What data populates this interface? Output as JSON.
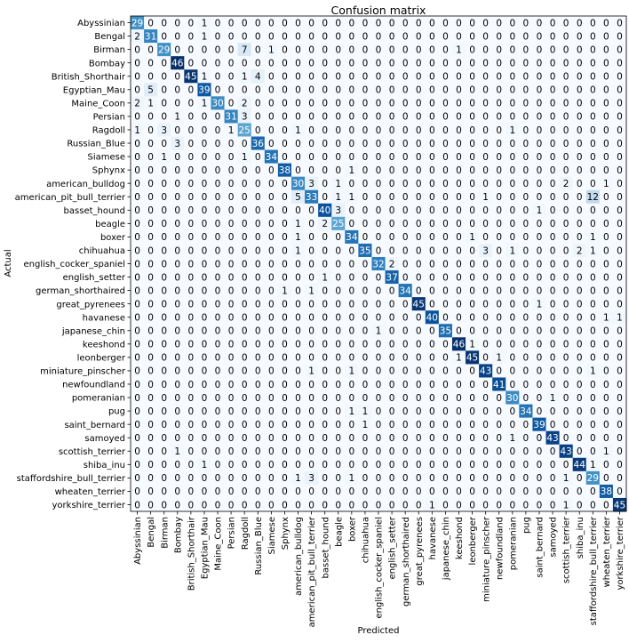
{
  "chart_data": {
    "type": "heatmap",
    "title": "Confusion matrix",
    "xlabel": "Predicted",
    "ylabel": "Actual",
    "categories": [
      "Abyssinian",
      "Bengal",
      "Birman",
      "Bombay",
      "British_Shorthair",
      "Egyptian_Mau",
      "Maine_Coon",
      "Persian",
      "Ragdoll",
      "Russian_Blue",
      "Siamese",
      "Sphynx",
      "american_bulldog",
      "american_pit_bull_terrier",
      "basset_hound",
      "beagle",
      "boxer",
      "chihuahua",
      "english_cocker_spaniel",
      "english_setter",
      "german_shorthaired",
      "great_pyrenees",
      "havanese",
      "japanese_chin",
      "keeshond",
      "leonberger",
      "miniature_pinscher",
      "newfoundland",
      "pomeranian",
      "pug",
      "saint_bernard",
      "samoyed",
      "scottish_terrier",
      "shiba_inu",
      "staffordshire_bull_terrier",
      "wheaten_terrier",
      "yorkshire_terrier"
    ],
    "colormap": "Blues",
    "vmin": 0,
    "vmax": 46,
    "matrix": [
      [
        29,
        0,
        0,
        0,
        0,
        1,
        0,
        0,
        0,
        0,
        0,
        0,
        0,
        0,
        0,
        0,
        0,
        0,
        0,
        0,
        0,
        0,
        0,
        0,
        0,
        0,
        0,
        0,
        0,
        0,
        0,
        0,
        0,
        0,
        0,
        0,
        0
      ],
      [
        2,
        31,
        0,
        0,
        0,
        1,
        0,
        0,
        0,
        0,
        0,
        0,
        0,
        0,
        0,
        0,
        0,
        0,
        0,
        0,
        0,
        0,
        0,
        0,
        0,
        0,
        0,
        0,
        0,
        0,
        0,
        0,
        0,
        0,
        0,
        0,
        0
      ],
      [
        0,
        0,
        29,
        0,
        0,
        0,
        0,
        0,
        7,
        0,
        1,
        0,
        0,
        0,
        0,
        0,
        0,
        0,
        0,
        0,
        0,
        0,
        0,
        0,
        1,
        0,
        0,
        0,
        0,
        0,
        0,
        0,
        0,
        0,
        0,
        0,
        0
      ],
      [
        0,
        0,
        0,
        46,
        0,
        0,
        0,
        0,
        0,
        0,
        0,
        0,
        0,
        0,
        0,
        0,
        0,
        0,
        0,
        0,
        0,
        0,
        0,
        0,
        0,
        0,
        0,
        0,
        0,
        0,
        0,
        0,
        0,
        0,
        0,
        0,
        0
      ],
      [
        0,
        0,
        0,
        0,
        45,
        1,
        0,
        0,
        1,
        4,
        0,
        0,
        0,
        0,
        0,
        0,
        0,
        0,
        0,
        0,
        0,
        0,
        0,
        0,
        0,
        0,
        0,
        0,
        0,
        0,
        0,
        0,
        0,
        0,
        0,
        0,
        0
      ],
      [
        0,
        5,
        0,
        0,
        0,
        39,
        0,
        0,
        0,
        0,
        0,
        0,
        0,
        0,
        0,
        0,
        0,
        0,
        0,
        0,
        0,
        0,
        0,
        0,
        0,
        0,
        0,
        0,
        0,
        0,
        0,
        0,
        0,
        0,
        0,
        0,
        0
      ],
      [
        2,
        1,
        0,
        0,
        0,
        1,
        30,
        0,
        2,
        0,
        0,
        0,
        0,
        0,
        0,
        0,
        0,
        0,
        0,
        0,
        0,
        0,
        0,
        0,
        0,
        0,
        0,
        0,
        0,
        0,
        0,
        0,
        0,
        0,
        0,
        0,
        0
      ],
      [
        0,
        0,
        0,
        1,
        0,
        0,
        0,
        31,
        3,
        0,
        0,
        0,
        0,
        0,
        0,
        0,
        0,
        0,
        0,
        0,
        0,
        0,
        0,
        0,
        0,
        0,
        0,
        0,
        0,
        0,
        0,
        0,
        0,
        0,
        0,
        0,
        0
      ],
      [
        1,
        0,
        3,
        0,
        0,
        0,
        0,
        1,
        25,
        0,
        0,
        0,
        1,
        0,
        0,
        0,
        0,
        0,
        0,
        0,
        0,
        0,
        0,
        0,
        0,
        0,
        0,
        0,
        1,
        0,
        0,
        0,
        0,
        0,
        0,
        0,
        0
      ],
      [
        0,
        0,
        0,
        3,
        0,
        0,
        0,
        0,
        0,
        36,
        0,
        0,
        0,
        0,
        0,
        0,
        0,
        0,
        0,
        0,
        0,
        0,
        0,
        0,
        0,
        0,
        0,
        0,
        0,
        0,
        0,
        0,
        0,
        0,
        0,
        0,
        0
      ],
      [
        0,
        0,
        1,
        0,
        0,
        0,
        0,
        0,
        1,
        0,
        34,
        0,
        0,
        0,
        0,
        0,
        0,
        0,
        0,
        0,
        0,
        0,
        0,
        0,
        0,
        0,
        0,
        0,
        0,
        0,
        0,
        0,
        0,
        0,
        0,
        0,
        0
      ],
      [
        0,
        0,
        0,
        0,
        0,
        0,
        0,
        0,
        0,
        0,
        0,
        38,
        0,
        0,
        0,
        0,
        1,
        0,
        0,
        0,
        0,
        0,
        0,
        0,
        0,
        0,
        0,
        0,
        0,
        0,
        0,
        0,
        0,
        0,
        0,
        0,
        0
      ],
      [
        0,
        0,
        0,
        0,
        0,
        0,
        0,
        0,
        0,
        0,
        0,
        0,
        30,
        3,
        0,
        1,
        0,
        0,
        0,
        0,
        0,
        0,
        0,
        0,
        0,
        0,
        0,
        0,
        0,
        0,
        0,
        0,
        2,
        0,
        0,
        1,
        0
      ],
      [
        0,
        0,
        0,
        0,
        0,
        0,
        0,
        0,
        0,
        0,
        0,
        0,
        5,
        33,
        0,
        1,
        1,
        0,
        0,
        0,
        0,
        0,
        0,
        0,
        0,
        0,
        1,
        0,
        0,
        0,
        0,
        0,
        0,
        0,
        12,
        0,
        0
      ],
      [
        0,
        0,
        0,
        0,
        0,
        0,
        0,
        0,
        0,
        0,
        0,
        0,
        0,
        0,
        40,
        3,
        0,
        0,
        0,
        0,
        0,
        0,
        0,
        0,
        0,
        0,
        0,
        0,
        0,
        0,
        1,
        0,
        0,
        0,
        0,
        0,
        0
      ],
      [
        0,
        0,
        0,
        0,
        0,
        0,
        0,
        0,
        0,
        0,
        0,
        0,
        1,
        0,
        2,
        25,
        0,
        0,
        0,
        0,
        0,
        0,
        0,
        0,
        0,
        0,
        0,
        0,
        0,
        0,
        0,
        0,
        0,
        0,
        0,
        0,
        0
      ],
      [
        0,
        0,
        0,
        0,
        0,
        0,
        0,
        0,
        0,
        0,
        0,
        0,
        1,
        0,
        0,
        0,
        34,
        0,
        0,
        0,
        0,
        0,
        0,
        0,
        0,
        1,
        0,
        0,
        0,
        0,
        0,
        0,
        0,
        0,
        1,
        0,
        0
      ],
      [
        0,
        0,
        0,
        0,
        0,
        0,
        0,
        0,
        0,
        0,
        0,
        0,
        1,
        0,
        0,
        0,
        0,
        35,
        0,
        0,
        0,
        0,
        0,
        0,
        0,
        0,
        3,
        0,
        1,
        0,
        0,
        0,
        0,
        2,
        1,
        0,
        0
      ],
      [
        0,
        0,
        0,
        0,
        0,
        0,
        0,
        0,
        0,
        0,
        0,
        0,
        0,
        0,
        0,
        0,
        0,
        0,
        32,
        2,
        0,
        0,
        0,
        0,
        0,
        0,
        0,
        0,
        0,
        0,
        0,
        0,
        0,
        0,
        0,
        0,
        0
      ],
      [
        0,
        0,
        0,
        0,
        0,
        0,
        0,
        0,
        0,
        0,
        0,
        0,
        0,
        0,
        1,
        0,
        0,
        0,
        0,
        37,
        0,
        0,
        0,
        0,
        0,
        0,
        0,
        0,
        0,
        0,
        0,
        0,
        0,
        0,
        0,
        0,
        0
      ],
      [
        0,
        0,
        0,
        0,
        0,
        0,
        0,
        0,
        0,
        0,
        0,
        1,
        0,
        1,
        0,
        0,
        0,
        0,
        0,
        0,
        34,
        0,
        0,
        0,
        0,
        0,
        0,
        0,
        0,
        0,
        0,
        0,
        0,
        0,
        0,
        0,
        0
      ],
      [
        0,
        0,
        0,
        0,
        0,
        0,
        0,
        0,
        0,
        0,
        0,
        0,
        0,
        0,
        0,
        0,
        0,
        0,
        0,
        0,
        0,
        45,
        0,
        0,
        0,
        0,
        0,
        0,
        0,
        0,
        1,
        0,
        0,
        0,
        0,
        0,
        0
      ],
      [
        0,
        0,
        0,
        0,
        0,
        0,
        0,
        0,
        0,
        0,
        0,
        0,
        0,
        0,
        0,
        0,
        0,
        0,
        0,
        0,
        0,
        0,
        40,
        0,
        0,
        0,
        0,
        0,
        0,
        0,
        0,
        0,
        0,
        0,
        0,
        1,
        1
      ],
      [
        0,
        0,
        0,
        0,
        0,
        0,
        0,
        0,
        0,
        0,
        0,
        0,
        0,
        0,
        0,
        0,
        0,
        0,
        1,
        0,
        0,
        0,
        0,
        35,
        0,
        0,
        0,
        0,
        0,
        0,
        0,
        0,
        0,
        0,
        0,
        0,
        0
      ],
      [
        0,
        0,
        0,
        0,
        0,
        0,
        0,
        0,
        0,
        0,
        0,
        0,
        0,
        0,
        0,
        0,
        0,
        0,
        0,
        0,
        0,
        0,
        0,
        0,
        46,
        1,
        0,
        0,
        0,
        0,
        0,
        0,
        0,
        0,
        0,
        0,
        0
      ],
      [
        0,
        0,
        0,
        0,
        0,
        0,
        0,
        0,
        0,
        0,
        0,
        0,
        0,
        0,
        0,
        0,
        0,
        0,
        0,
        0,
        0,
        0,
        0,
        0,
        1,
        45,
        0,
        1,
        0,
        0,
        0,
        0,
        0,
        0,
        0,
        0,
        0
      ],
      [
        0,
        0,
        0,
        0,
        0,
        0,
        0,
        0,
        0,
        0,
        0,
        0,
        0,
        1,
        0,
        0,
        1,
        0,
        0,
        0,
        0,
        0,
        0,
        0,
        0,
        0,
        43,
        0,
        0,
        0,
        0,
        0,
        0,
        0,
        1,
        0,
        0
      ],
      [
        0,
        0,
        0,
        0,
        0,
        0,
        0,
        0,
        0,
        0,
        0,
        0,
        0,
        0,
        0,
        0,
        0,
        0,
        0,
        0,
        0,
        0,
        0,
        0,
        0,
        0,
        0,
        41,
        0,
        0,
        0,
        0,
        0,
        0,
        0,
        0,
        0
      ],
      [
        0,
        0,
        0,
        0,
        0,
        0,
        0,
        0,
        0,
        0,
        0,
        0,
        0,
        0,
        0,
        0,
        0,
        0,
        0,
        0,
        0,
        0,
        0,
        0,
        0,
        0,
        0,
        0,
        30,
        0,
        0,
        1,
        0,
        0,
        0,
        0,
        0
      ],
      [
        0,
        0,
        0,
        0,
        0,
        0,
        0,
        0,
        0,
        0,
        0,
        0,
        0,
        0,
        0,
        0,
        1,
        1,
        0,
        0,
        0,
        0,
        0,
        0,
        0,
        0,
        0,
        0,
        0,
        34,
        0,
        0,
        0,
        0,
        0,
        0,
        0
      ],
      [
        0,
        0,
        0,
        0,
        0,
        0,
        0,
        0,
        0,
        0,
        0,
        0,
        0,
        0,
        0,
        0,
        0,
        1,
        0,
        0,
        0,
        0,
        0,
        0,
        0,
        0,
        0,
        0,
        0,
        0,
        39,
        0,
        0,
        0,
        0,
        0,
        0
      ],
      [
        0,
        0,
        0,
        0,
        0,
        0,
        0,
        0,
        0,
        0,
        0,
        0,
        0,
        0,
        0,
        0,
        0,
        0,
        0,
        0,
        0,
        0,
        0,
        0,
        0,
        0,
        0,
        0,
        1,
        0,
        0,
        43,
        0,
        0,
        0,
        0,
        0
      ],
      [
        0,
        0,
        0,
        1,
        0,
        0,
        0,
        0,
        0,
        0,
        0,
        0,
        0,
        0,
        0,
        0,
        0,
        0,
        0,
        0,
        0,
        0,
        0,
        0,
        0,
        0,
        0,
        0,
        0,
        0,
        0,
        0,
        43,
        0,
        0,
        1,
        0
      ],
      [
        0,
        0,
        0,
        0,
        0,
        1,
        0,
        0,
        0,
        0,
        0,
        0,
        0,
        0,
        0,
        0,
        0,
        0,
        0,
        0,
        0,
        0,
        0,
        0,
        0,
        0,
        0,
        0,
        0,
        0,
        0,
        0,
        0,
        44,
        1,
        0,
        0
      ],
      [
        0,
        0,
        0,
        0,
        0,
        0,
        0,
        0,
        0,
        0,
        0,
        0,
        1,
        3,
        0,
        0,
        1,
        0,
        0,
        0,
        0,
        0,
        0,
        0,
        0,
        0,
        0,
        0,
        0,
        0,
        0,
        0,
        1,
        0,
        29,
        0,
        0
      ],
      [
        0,
        0,
        0,
        0,
        0,
        0,
        0,
        0,
        0,
        0,
        0,
        0,
        0,
        0,
        0,
        0,
        0,
        0,
        0,
        0,
        0,
        0,
        0,
        0,
        0,
        0,
        0,
        0,
        0,
        0,
        0,
        0,
        0,
        0,
        0,
        38,
        0
      ],
      [
        0,
        0,
        0,
        0,
        0,
        0,
        0,
        0,
        0,
        0,
        0,
        0,
        0,
        0,
        0,
        0,
        0,
        0,
        0,
        0,
        0,
        0,
        1,
        0,
        0,
        0,
        0,
        0,
        0,
        0,
        0,
        0,
        1,
        0,
        0,
        0,
        45
      ]
    ]
  }
}
